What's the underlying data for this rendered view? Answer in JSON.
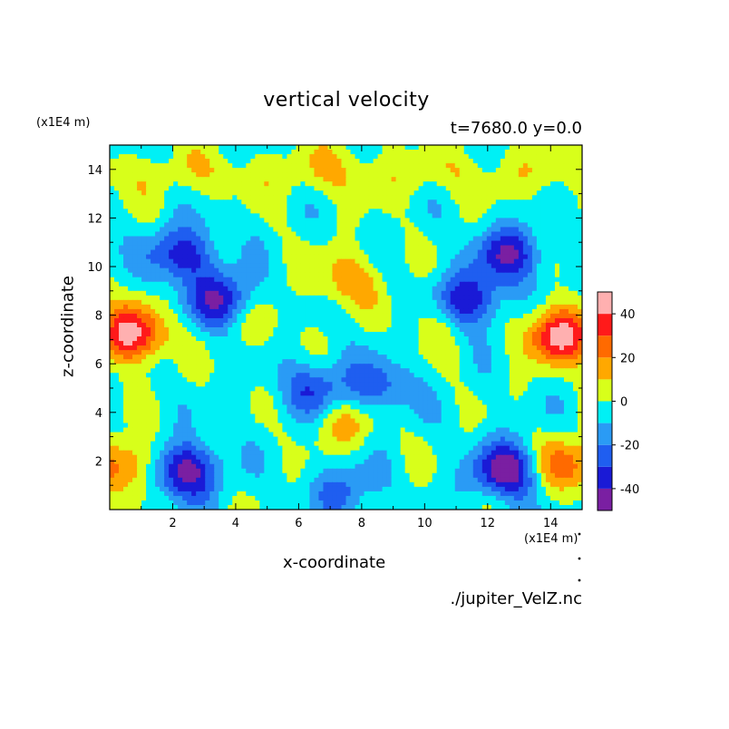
{
  "chart_data": {
    "type": "heatmap",
    "title": "vertical velocity",
    "subtitle": "t=7680.0 y=0.0",
    "xlabel": "x-coordinate",
    "ylabel": "z-coordinate",
    "x_unit": "(x1E4 m)",
    "y_unit": "(x1E4 m)",
    "xlim": [
      0,
      15
    ],
    "ylim": [
      0,
      15
    ],
    "x_ticks": [
      2,
      4,
      6,
      8,
      10,
      12,
      14
    ],
    "y_ticks": [
      2,
      4,
      6,
      8,
      10,
      12,
      14
    ],
    "footer": "./jupiter_VelZ.nc",
    "colorbar": {
      "levels": [
        -50,
        -40,
        -30,
        -20,
        -10,
        0,
        10,
        20,
        30,
        40,
        50
      ],
      "tick_labels": [
        40,
        20,
        0,
        -20,
        -40
      ],
      "colors": [
        "#7a1fa2",
        "#1a1ad6",
        "#1f5ef0",
        "#2a9bf5",
        "#00f0f5",
        "#d8ff1a",
        "#ffa800",
        "#ff6a00",
        "#ff1a1a",
        "#ffb0b0"
      ]
    },
    "features": [
      {
        "x": 0.7,
        "z": 7.2,
        "value": 48
      },
      {
        "x": 14.3,
        "z": 7.2,
        "value": 48
      },
      {
        "x": 0.5,
        "z": 1.8,
        "value": 30
      },
      {
        "x": 14.5,
        "z": 1.8,
        "value": 30
      },
      {
        "x": 2.4,
        "z": 1.6,
        "value": -45
      },
      {
        "x": 12.6,
        "z": 1.6,
        "value": -45
      },
      {
        "x": 3.6,
        "z": 8.6,
        "value": -38
      },
      {
        "x": 11.4,
        "z": 8.6,
        "value": -38
      },
      {
        "x": 4.6,
        "z": 7.8,
        "value": 12
      },
      {
        "x": 10.4,
        "z": 7.8,
        "value": 12
      },
      {
        "x": 7.5,
        "z": 9.5,
        "value": 20
      },
      {
        "x": 7.5,
        "z": 3.6,
        "value": 18
      },
      {
        "x": 7.5,
        "z": 0.8,
        "value": -20
      },
      {
        "x": 6.5,
        "z": 5.0,
        "value": -25
      },
      {
        "x": 8.5,
        "z": 5.0,
        "value": -25
      },
      {
        "x": 2.3,
        "z": 10.5,
        "value": -35
      },
      {
        "x": 12.7,
        "z": 10.5,
        "value": -35
      },
      {
        "x": 7.5,
        "z": 14.2,
        "value": 5
      }
    ]
  }
}
